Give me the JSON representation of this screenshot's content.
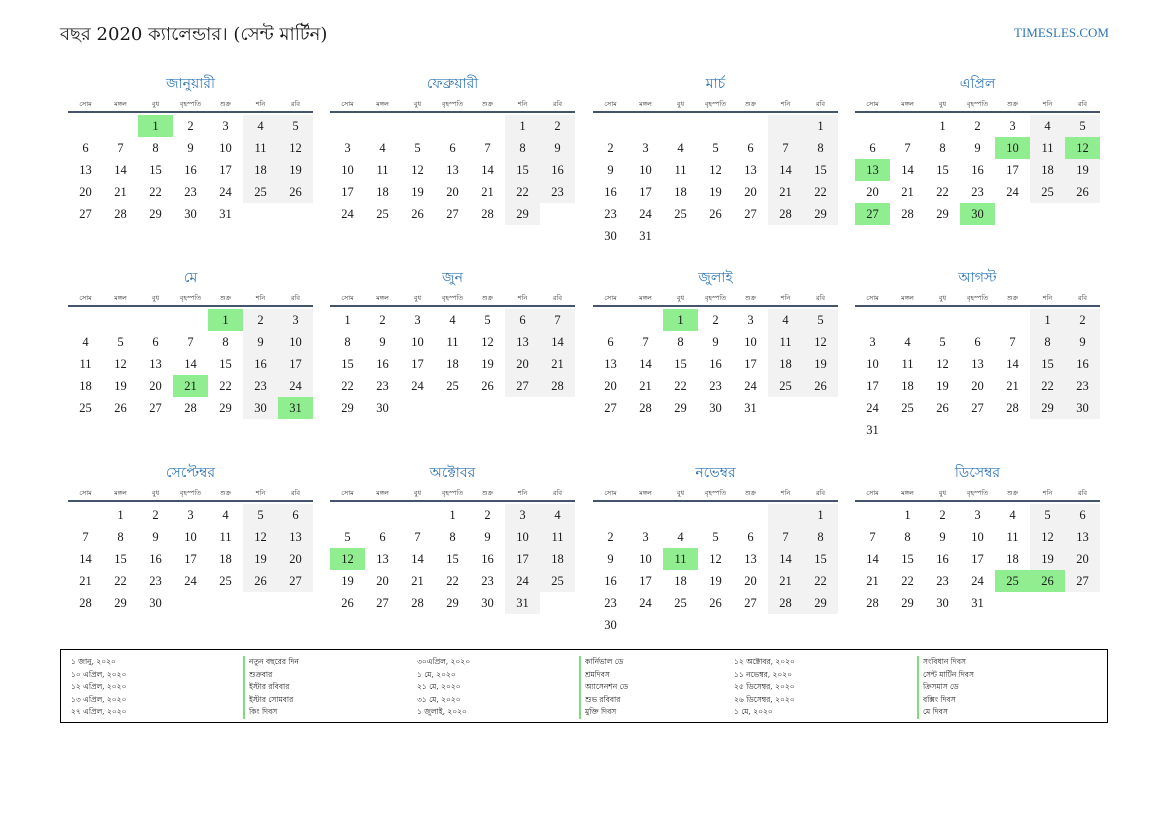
{
  "title": "বছর 2020 ক্যালেন্ডার। (সেন্ট মার্টিন)",
  "site": "TIMESLES.COM",
  "weekdays": [
    "সোম",
    "মঙ্গল",
    "বুধ",
    "বৃহস্পতি",
    "শুক্র",
    "শনি",
    "রবি"
  ],
  "months": [
    {
      "name": "জানুয়ারী",
      "start": 2,
      "days": 31,
      "holidays": [
        1
      ]
    },
    {
      "name": "ফেব্রুয়ারী",
      "start": 5,
      "days": 29,
      "holidays": []
    },
    {
      "name": "মার্চ",
      "start": 6,
      "days": 31,
      "holidays": []
    },
    {
      "name": "এপ্রিল",
      "start": 2,
      "days": 30,
      "holidays": [
        10,
        12,
        13,
        27,
        30
      ]
    },
    {
      "name": "মে",
      "start": 4,
      "days": 31,
      "holidays": [
        1,
        21,
        31
      ]
    },
    {
      "name": "জুন",
      "start": 0,
      "days": 30,
      "holidays": []
    },
    {
      "name": "জুলাই",
      "start": 2,
      "days": 31,
      "holidays": [
        1
      ]
    },
    {
      "name": "আগস্ট",
      "start": 5,
      "days": 31,
      "holidays": []
    },
    {
      "name": "সেপ্টেম্বর",
      "start": 1,
      "days": 30,
      "holidays": []
    },
    {
      "name": "অক্টোবর",
      "start": 3,
      "days": 31,
      "holidays": [
        12
      ]
    },
    {
      "name": "নভেম্বর",
      "start": 6,
      "days": 30,
      "holidays": [
        11
      ]
    },
    {
      "name": "ডিসেম্বর",
      "start": 1,
      "days": 31,
      "holidays": [
        25,
        26
      ]
    }
  ],
  "legend": {
    "col1": [
      "১ জানু, ২০২০",
      "১০ এপ্রিল, ২০২০",
      "১২ এপ্রিল, ২০২০",
      "১৩ এপ্রিল, ২০২০",
      "২৭ এপ্রিল, ২০২০"
    ],
    "col2": [
      "নতুন বছরের দিন",
      "শুক্রবার",
      "ইস্টার রবিবার",
      "ইস্টার সোমবার",
      "কিং দিবস"
    ],
    "col3": [
      "৩০এপ্রিল, ২০২০",
      "১ মে, ২০২০",
      "২১ মে, ২০২০",
      "৩১ মে, ২০২০",
      "১ জুলাই, ২০২০"
    ],
    "col4": [
      "কার্নিভাল ডে",
      "শ্রমদিবস",
      "অ্যাসেনশন ডে",
      "শুভ রবিবার",
      "মুক্তি দিবস"
    ],
    "col5": [
      "১২ অক্টোবর, ২০২০",
      "১১ নভেম্বর, ২০২০",
      "২৫ ডিসেম্বর, ২০২০",
      "২৬ ডিসেম্বর, ২০২০",
      "১ মে, ২০২০"
    ],
    "col6": [
      "সংবিধান দিবস",
      "সেন্ট মার্টিন দিবস",
      "ক্রিসমাস ডে",
      "বক্সিং দিবস",
      "মে দিবস"
    ]
  }
}
